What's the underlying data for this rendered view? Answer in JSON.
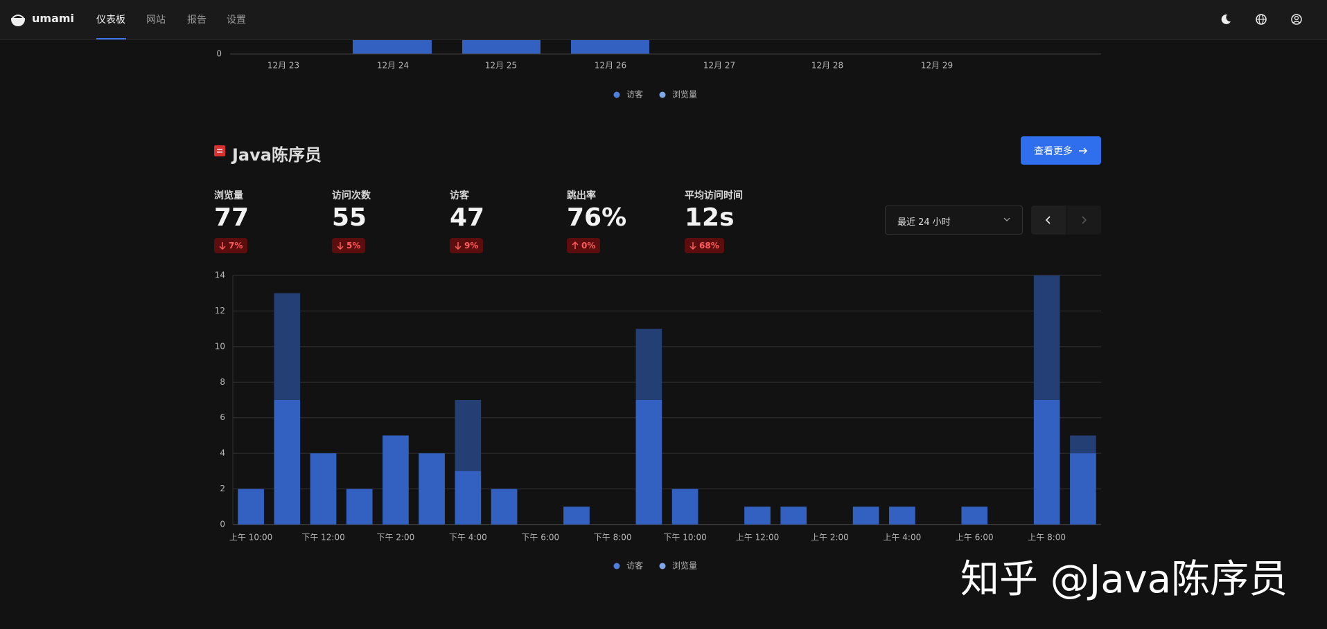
{
  "header": {
    "brand": "umami",
    "nav": [
      "仪表板",
      "网站",
      "报告",
      "设置"
    ]
  },
  "website": {
    "title": "Java陈序员",
    "button": "查看更多",
    "date_range": "最近 24 小时",
    "metrics": [
      {
        "label": "浏览量",
        "value": "77",
        "change": "7%",
        "direction": "down"
      },
      {
        "label": "访问次数",
        "value": "55",
        "change": "5%",
        "direction": "down"
      },
      {
        "label": "访客",
        "value": "47",
        "change": "9%",
        "direction": "down"
      },
      {
        "label": "跳出率",
        "value": "76%",
        "change": "0%",
        "direction": "up"
      },
      {
        "label": "平均访问时间",
        "value": "12s",
        "change": "68%",
        "direction": "down"
      }
    ]
  },
  "chart_data": [
    {
      "type": "bar",
      "categories": [
        "12月 23",
        "12月 24",
        "12月 25",
        "12月 26",
        "12月 27",
        "12月 28",
        "12月 29"
      ],
      "yticks": [
        0
      ],
      "legend": [
        "访客",
        "浏览量"
      ]
    },
    {
      "type": "bar",
      "overlay": true,
      "categories": [
        "上午 10:00",
        null,
        "下午 12:00",
        null,
        "下午 2:00",
        null,
        "下午 4:00",
        null,
        "下午 6:00",
        null,
        "下午 8:00",
        null,
        "下午 10:00",
        null,
        "上午 12:00",
        null,
        "上午 2:00",
        null,
        "上午 4:00",
        null,
        "上午 6:00",
        null,
        "上午 8:00",
        null
      ],
      "series": [
        {
          "name": "浏览量",
          "color": "#243f74",
          "values": [
            2,
            13,
            4,
            2,
            5,
            4,
            7,
            2,
            0,
            1,
            0,
            11,
            2,
            0,
            1,
            1,
            0,
            1,
            1,
            0,
            1,
            0,
            14,
            5
          ]
        },
        {
          "name": "访客",
          "color": "#3261c2",
          "values": [
            2,
            7,
            4,
            2,
            5,
            4,
            3,
            2,
            0,
            1,
            0,
            7,
            2,
            0,
            1,
            1,
            0,
            1,
            1,
            0,
            1,
            0,
            7,
            4
          ]
        }
      ],
      "ylim": [
        0,
        14
      ],
      "yticks": [
        0,
        2,
        4,
        6,
        8,
        10,
        12,
        14
      ],
      "grid": true
    }
  ],
  "watermark": "知乎 @Java陈序员"
}
